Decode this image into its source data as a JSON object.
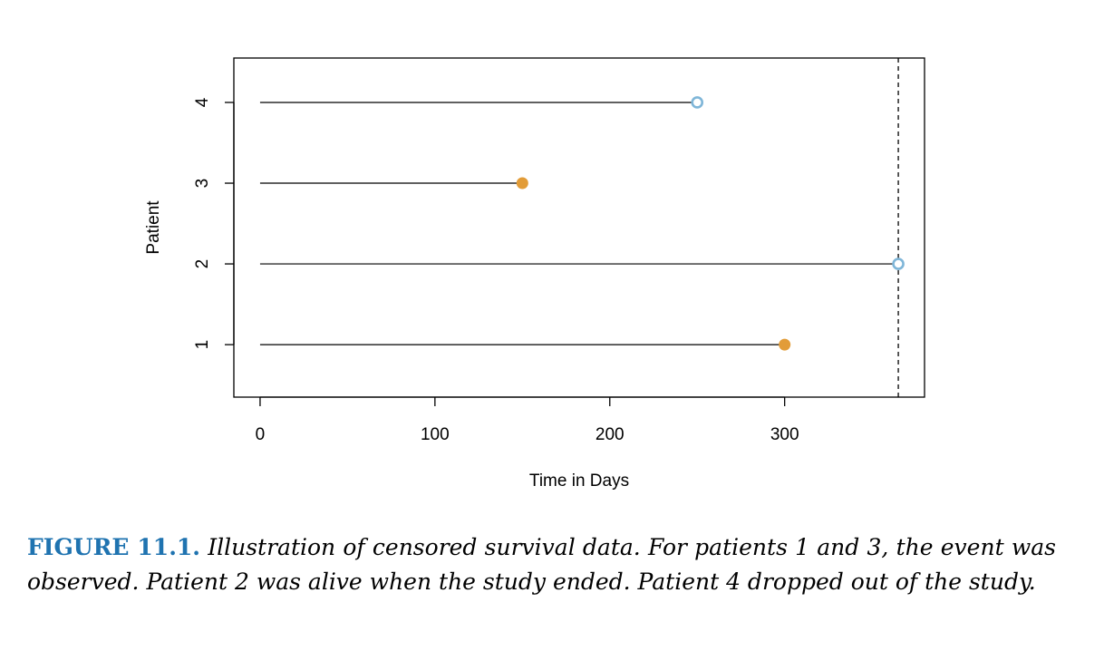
{
  "chart_data": {
    "type": "line",
    "title": "",
    "xlabel": "Time in Days",
    "ylabel": "Patient",
    "xlim": [
      -15,
      380
    ],
    "ylim": [
      0.35,
      4.55
    ],
    "x_ticks": [
      0,
      100,
      200,
      300
    ],
    "y_ticks": [
      1,
      2,
      3,
      4
    ],
    "study_end_line": {
      "x": 365,
      "style": "dashed"
    },
    "series": [
      {
        "patient": 1,
        "start": 0,
        "end": 300,
        "marker": "filled",
        "color": "#e29c38"
      },
      {
        "patient": 2,
        "start": 0,
        "end": 365,
        "marker": "open",
        "color": "#7fb6d8"
      },
      {
        "patient": 3,
        "start": 0,
        "end": 150,
        "marker": "filled",
        "color": "#e29c38"
      },
      {
        "patient": 4,
        "start": 0,
        "end": 250,
        "marker": "open",
        "color": "#7fb6d8"
      }
    ],
    "grid": false,
    "legend": "none"
  },
  "caption": {
    "label": "FIGURE 11.1.",
    "text": "Illustration of censored survival data. For patients 1 and 3, the event was observed. Patient 2 was alive when the study ended. Patient 4 dropped out of the study."
  },
  "colors": {
    "event": "#e29c38",
    "censored": "#7fb6d8",
    "caption_label": "#1f73b0"
  }
}
